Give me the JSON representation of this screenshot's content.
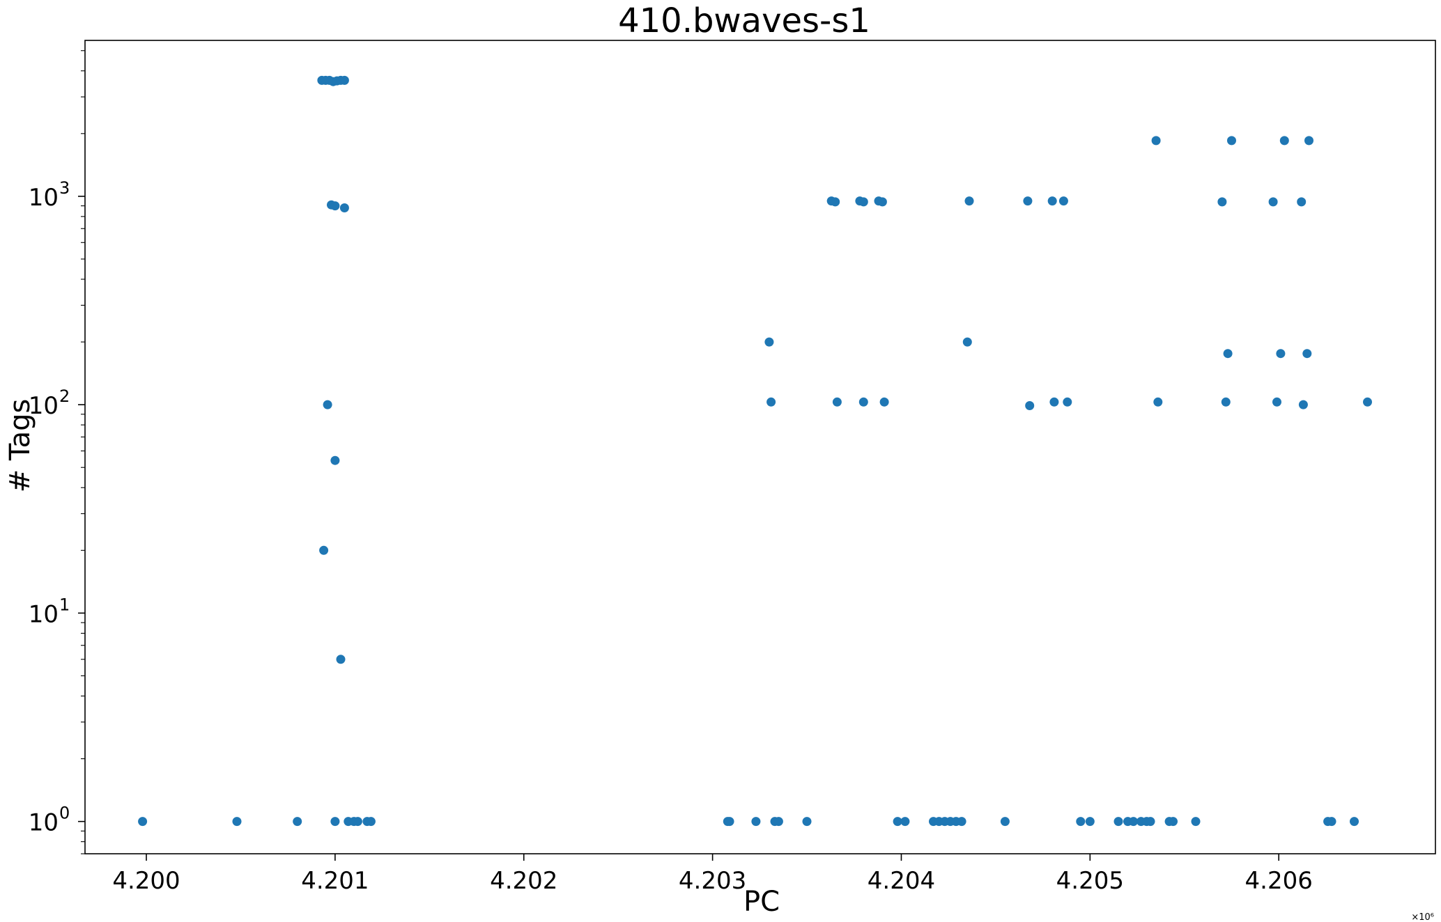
{
  "chart_data": {
    "type": "scatter",
    "title": "410.bwaves-s1",
    "xlabel": "PC",
    "ylabel": "# Tags",
    "x_offset_label": "×10⁶",
    "x_scale_factor": 1000000,
    "xlim": [
      4199675,
      4206830
    ],
    "ylim": [
      0.7,
      5600
    ],
    "yscale": "log",
    "x_ticks": [
      {
        "value": 4200000,
        "label": "4.200"
      },
      {
        "value": 4201000,
        "label": "4.201"
      },
      {
        "value": 4202000,
        "label": "4.202"
      },
      {
        "value": 4203000,
        "label": "4.203"
      },
      {
        "value": 4204000,
        "label": "4.204"
      },
      {
        "value": 4205000,
        "label": "4.205"
      },
      {
        "value": 4206000,
        "label": "4.206"
      }
    ],
    "y_ticks": [
      {
        "value": 1,
        "base": "10",
        "exp": "0"
      },
      {
        "value": 10,
        "base": "10",
        "exp": "1"
      },
      {
        "value": 100,
        "base": "10",
        "exp": "2"
      },
      {
        "value": 1000,
        "base": "10",
        "exp": "3"
      }
    ],
    "grid": false,
    "color": "#1f77b4",
    "points": [
      [
        4199980,
        1
      ],
      [
        4200480,
        1
      ],
      [
        4200800,
        1
      ],
      [
        4201000,
        1
      ],
      [
        4201070,
        1
      ],
      [
        4201100,
        1
      ],
      [
        4201120,
        1
      ],
      [
        4201170,
        1
      ],
      [
        4201190,
        1
      ],
      [
        4201030,
        6
      ],
      [
        4200940,
        20
      ],
      [
        4201000,
        54
      ],
      [
        4200960,
        100
      ],
      [
        4200980,
        910
      ],
      [
        4201000,
        900
      ],
      [
        4201050,
        880
      ],
      [
        4200930,
        3600
      ],
      [
        4200950,
        3600
      ],
      [
        4200970,
        3600
      ],
      [
        4200990,
        3550
      ],
      [
        4201010,
        3580
      ],
      [
        4201030,
        3600
      ],
      [
        4201050,
        3600
      ],
      [
        4203080,
        1
      ],
      [
        4203090,
        1
      ],
      [
        4203230,
        1
      ],
      [
        4203330,
        1
      ],
      [
        4203350,
        1
      ],
      [
        4203500,
        1
      ],
      [
        4203300,
        200
      ],
      [
        4203310,
        103
      ],
      [
        4203630,
        950
      ],
      [
        4203650,
        940
      ],
      [
        4203780,
        950
      ],
      [
        4203800,
        940
      ],
      [
        4203880,
        950
      ],
      [
        4203900,
        940
      ],
      [
        4203660,
        103
      ],
      [
        4203800,
        103
      ],
      [
        4203910,
        103
      ],
      [
        4203980,
        1
      ],
      [
        4204020,
        1
      ],
      [
        4204170,
        1
      ],
      [
        4204200,
        1
      ],
      [
        4204230,
        1
      ],
      [
        4204260,
        1
      ],
      [
        4204290,
        1
      ],
      [
        4204320,
        1
      ],
      [
        4204550,
        1
      ],
      [
        4204350,
        200
      ],
      [
        4204360,
        950
      ],
      [
        4204670,
        950
      ],
      [
        4204680,
        99
      ],
      [
        4204800,
        950
      ],
      [
        4204810,
        103
      ],
      [
        4204860,
        950
      ],
      [
        4204880,
        103
      ],
      [
        4204950,
        1
      ],
      [
        4205000,
        1
      ],
      [
        4205150,
        1
      ],
      [
        4205200,
        1
      ],
      [
        4205230,
        1
      ],
      [
        4205270,
        1
      ],
      [
        4205300,
        1
      ],
      [
        4205320,
        1
      ],
      [
        4205420,
        1
      ],
      [
        4205440,
        1
      ],
      [
        4205560,
        1
      ],
      [
        4205350,
        1850
      ],
      [
        4205360,
        103
      ],
      [
        4205700,
        940
      ],
      [
        4205720,
        103
      ],
      [
        4205730,
        176
      ],
      [
        4205750,
        1850
      ],
      [
        4205970,
        940
      ],
      [
        4205990,
        103
      ],
      [
        4206010,
        176
      ],
      [
        4206030,
        1850
      ],
      [
        4206120,
        940
      ],
      [
        4206130,
        100
      ],
      [
        4206150,
        176
      ],
      [
        4206160,
        1850
      ],
      [
        4206260,
        1
      ],
      [
        4206280,
        1
      ],
      [
        4206400,
        1
      ],
      [
        4206470,
        103
      ]
    ]
  }
}
